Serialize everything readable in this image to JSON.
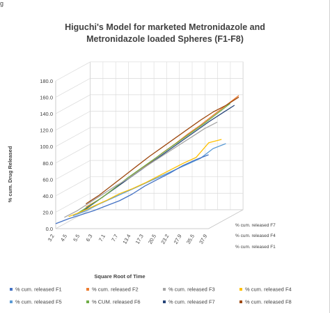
{
  "corner_mark": "g",
  "chart_data": {
    "type": "line",
    "title_lines": [
      "Higuchi's Model for marketed Metronidazole and",
      "Metronidazole  loaded Spheres (F1-F8)"
    ],
    "xlabel": "Square Root of Time",
    "ylabel": "% cum. Drug Released",
    "categories": [
      "3.2",
      "4.5",
      "5.5",
      "6.3",
      "7.1",
      "7.7",
      "13.4",
      "17.3",
      "20.5",
      "23.2",
      "27.9",
      "35.5",
      "37.9"
    ],
    "yticks": [
      "0.0",
      "20.0",
      "40.0",
      "60.0",
      "80.0",
      "100.0",
      "120.0",
      "140.0",
      "160.0",
      "180.0"
    ],
    "ylim": [
      0,
      180
    ],
    "depth_labels": [
      "% cum. released F7",
      "% cum. released F4",
      "% cum. released F1"
    ],
    "series": [
      {
        "name": "% cum. released F1",
        "color": "#4472c4",
        "depth": 0,
        "values": [
          6,
          12,
          17,
          22,
          28,
          34,
          42,
          52,
          60,
          68,
          77,
          84,
          90
        ]
      },
      {
        "name": "% cum. released F2",
        "color": "#ed7d31",
        "depth": 7,
        "values": [
          6,
          15,
          26,
          37,
          49,
          60,
          72,
          83,
          95,
          106,
          118,
          130,
          142
        ]
      },
      {
        "name": "% cum. released F3",
        "color": "#a5a5a5",
        "depth": 2,
        "values": [
          8,
          16,
          26,
          36,
          46,
          55,
          66,
          76,
          86,
          96,
          106,
          116,
          124
        ]
      },
      {
        "name": "% cum. released F4",
        "color": "#ffc000",
        "depth": 3,
        "values": [
          6,
          12,
          19,
          26,
          34,
          40,
          47,
          55,
          63,
          71,
          78,
          96,
          100
        ]
      },
      {
        "name": "% cum. released F5",
        "color": "#5b9bd5",
        "depth": 4,
        "values": [
          4,
          10,
          18,
          25,
          32,
          39,
          46,
          53,
          60,
          67,
          74,
          86,
          92
        ]
      },
      {
        "name": "% CUM. released F6",
        "color": "#70ad47",
        "depth": 5,
        "values": [
          4,
          14,
          24,
          36,
          48,
          59,
          70,
          81,
          92,
          103,
          114,
          126,
          138
        ]
      },
      {
        "name": "% cum. released F7",
        "color": "#264478",
        "depth": 6,
        "values": [
          3,
          14,
          25,
          36,
          47,
          58,
          69,
          80,
          91,
          102,
          113,
          123,
          133
        ]
      },
      {
        "name": "% cum. released F8",
        "color": "#9e480e",
        "depth": 7,
        "values": [
          10,
          20,
          32,
          44,
          56,
          68,
          79,
          90,
          101,
          112,
          122,
          130,
          140
        ]
      }
    ],
    "colors": {
      "grid": "#d9d9d9",
      "axis": "#bfbfbf",
      "text": "#404040"
    }
  }
}
